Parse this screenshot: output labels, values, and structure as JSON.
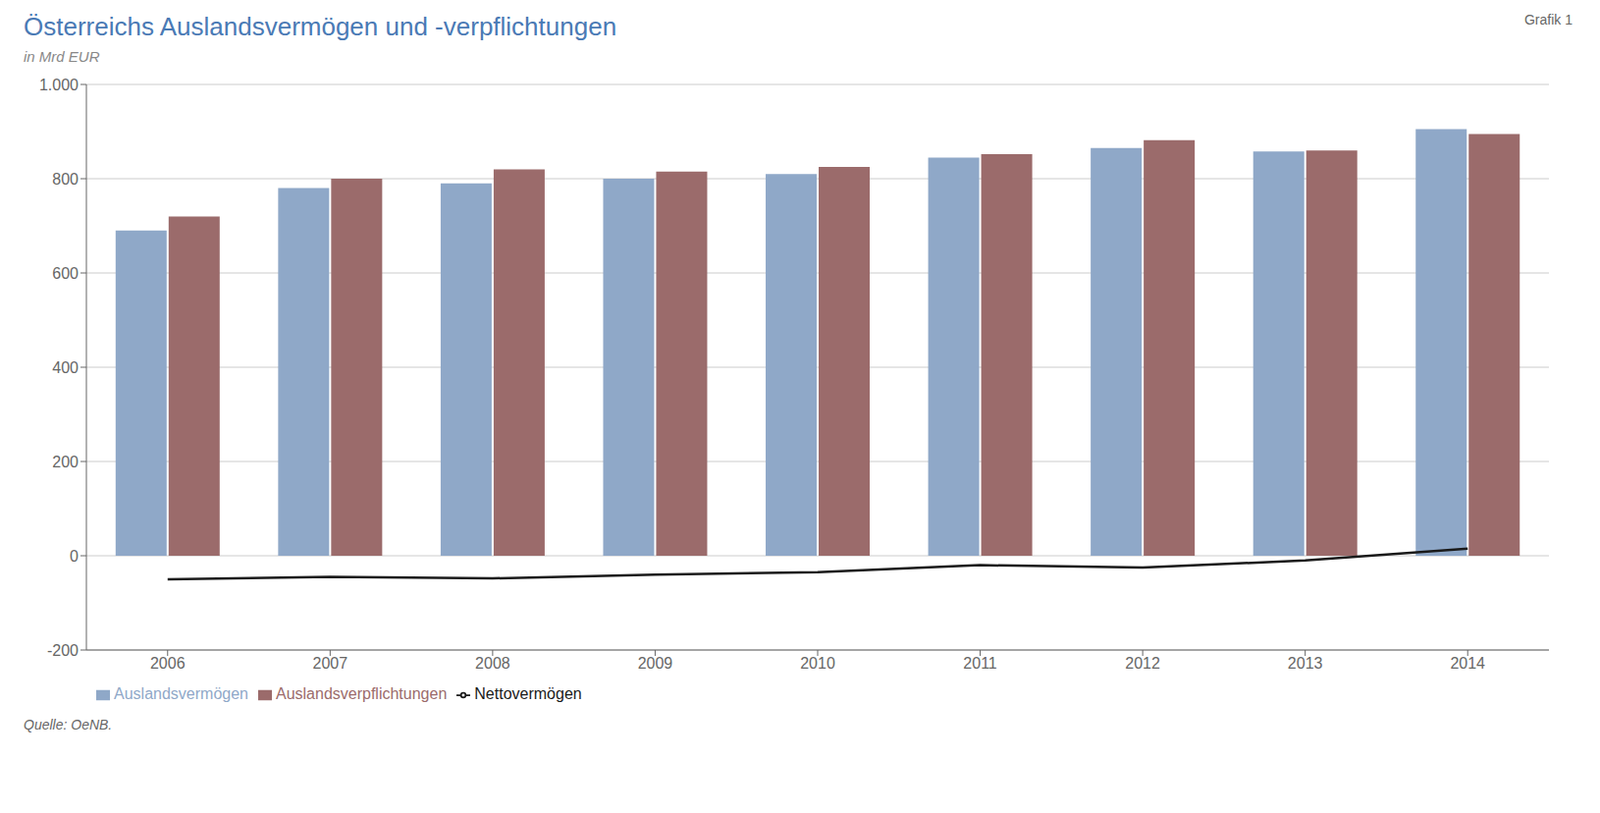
{
  "chart_data": {
    "type": "bar",
    "title": "Österreichs Auslandsvermögen und -verpflichtungen",
    "subtitle": "in Mrd EUR",
    "annotations": [
      "Grafik 1",
      "Quelle: OeNB."
    ],
    "categories": [
      "2006",
      "2007",
      "2008",
      "2009",
      "2010",
      "2011",
      "2012",
      "2013",
      "2014"
    ],
    "series": [
      {
        "name": "Auslandsvermögen",
        "type": "bar",
        "color": "#8fa8c8",
        "values": [
          690,
          780,
          790,
          800,
          810,
          845,
          865,
          858,
          905
        ]
      },
      {
        "name": "Auslandsverpflichtungen",
        "type": "bar",
        "color": "#9b6b6b",
        "values": [
          720,
          800,
          820,
          815,
          825,
          852,
          882,
          860,
          895
        ]
      },
      {
        "name": "Nettovermögen",
        "type": "line",
        "color": "#1a1a1a",
        "values": [
          -50,
          -45,
          -48,
          -40,
          -35,
          -20,
          -25,
          -10,
          15
        ]
      }
    ],
    "ylim": [
      -200,
      1000
    ],
    "yticks": [
      -200,
      0,
      200,
      400,
      600,
      800,
      {
        "value": 1000,
        "label": "1.000"
      }
    ],
    "grid": true,
    "legend": "bottom"
  }
}
